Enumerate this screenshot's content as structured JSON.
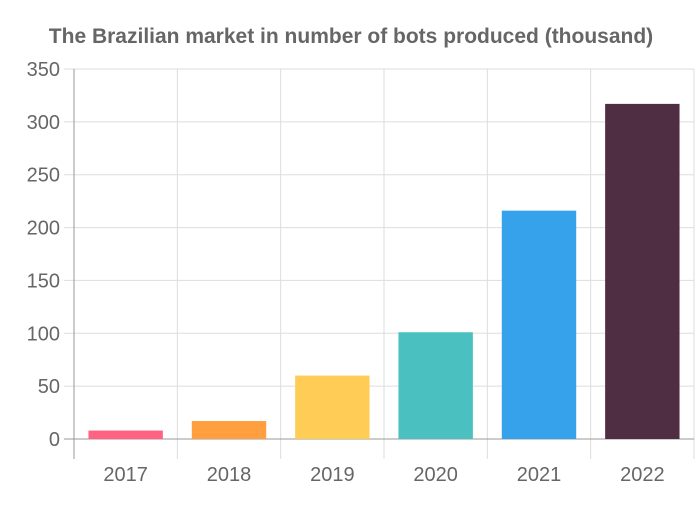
{
  "chart_data": {
    "type": "bar",
    "title": "The Brazilian market in number of bots produced (thousand)",
    "xlabel": "",
    "ylabel": "",
    "categories": [
      "2017",
      "2018",
      "2019",
      "2020",
      "2021",
      "2022"
    ],
    "values": [
      8,
      17,
      60,
      101,
      216,
      317
    ],
    "colors": [
      "#ff6384",
      "#ff9f40",
      "#ffcd56",
      "#4bc0c0",
      "#36a2eb",
      "#4f2e44"
    ],
    "ylim": [
      0,
      350
    ],
    "yticks": [
      0,
      50,
      100,
      150,
      200,
      250,
      300,
      350
    ],
    "grid": true,
    "legend": "none"
  }
}
